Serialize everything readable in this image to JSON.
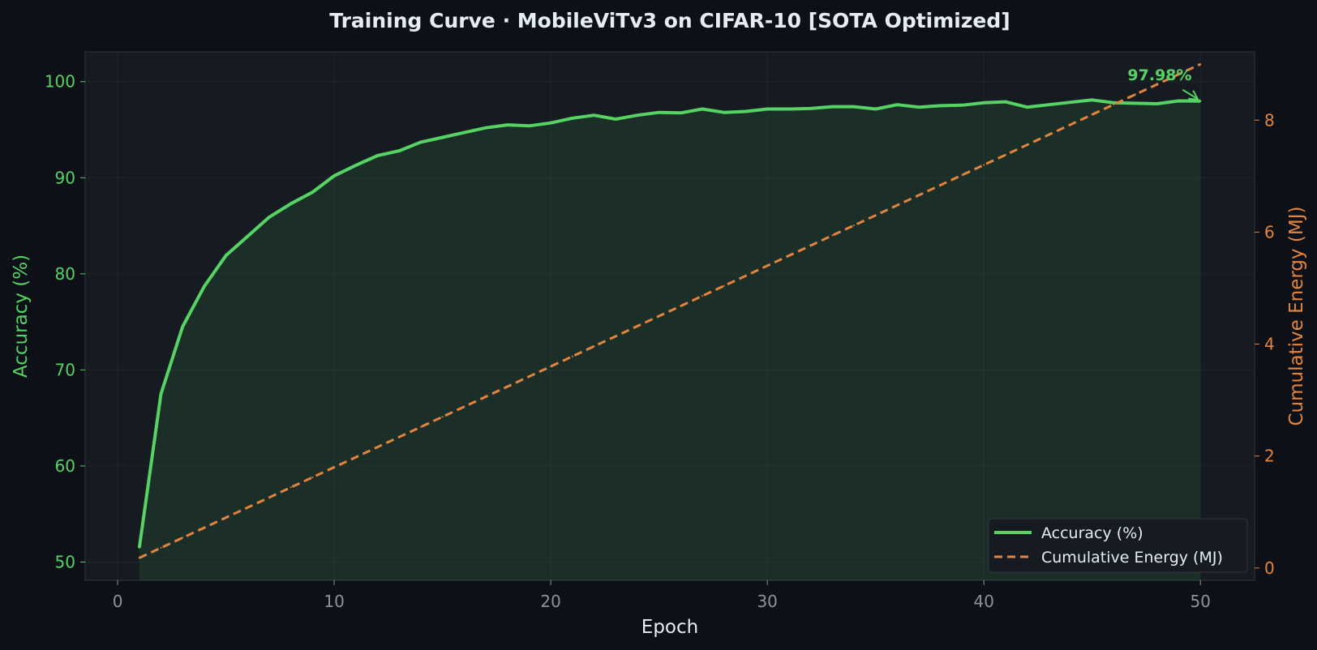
{
  "chart_data": {
    "type": "line",
    "title": "Training Curve  ·  MobileViTv3 on CIFAR-10  [SOTA Optimized]",
    "xlabel": "Epoch",
    "ylabel_left": "Accuracy (%)",
    "ylabel_right": "Cumulative Energy (MJ)",
    "xlim": [
      -1.5,
      52.5
    ],
    "ylim_left": [
      48.1,
      103.1
    ],
    "ylim_right": [
      -0.22,
      9.22
    ],
    "xticks": [
      0,
      10,
      20,
      30,
      40,
      50
    ],
    "yticks_left": [
      50,
      60,
      70,
      80,
      90,
      100
    ],
    "yticks_right": [
      0,
      2,
      4,
      6,
      8
    ],
    "grid": true,
    "legend_position": "lower-right",
    "colors": {
      "background": "#0d1117",
      "plot_background": "#161b22",
      "accuracy": "#56d364",
      "energy": "#e3843e",
      "text": "#e6edf3",
      "tick_gray": "#8b949e"
    },
    "x": [
      1,
      2,
      3,
      4,
      5,
      6,
      7,
      8,
      9,
      10,
      11,
      12,
      13,
      14,
      15,
      16,
      17,
      18,
      19,
      20,
      21,
      22,
      23,
      24,
      25,
      26,
      27,
      28,
      29,
      30,
      31,
      32,
      33,
      34,
      35,
      36,
      37,
      38,
      39,
      40,
      41,
      42,
      43,
      44,
      45,
      46,
      47,
      48,
      49,
      50
    ],
    "series": [
      {
        "name": "Accuracy (%)",
        "axis": "left",
        "style": "solid",
        "fill": true,
        "values": [
          51.5,
          67.5,
          74.5,
          78.7,
          81.9,
          83.9,
          85.9,
          87.3,
          88.5,
          90.2,
          91.3,
          92.3,
          92.8,
          93.7,
          94.2,
          94.7,
          95.2,
          95.5,
          95.4,
          95.7,
          96.2,
          96.5,
          96.1,
          96.5,
          96.8,
          96.75,
          97.15,
          96.8,
          96.9,
          97.15,
          97.15,
          97.2,
          97.4,
          97.4,
          97.15,
          97.6,
          97.35,
          97.5,
          97.55,
          97.8,
          97.9,
          97.35,
          97.6,
          97.85,
          98.1,
          97.8,
          97.75,
          97.7,
          98.0,
          97.98
        ]
      },
      {
        "name": "Cumulative Energy (MJ)",
        "axis": "right",
        "style": "dashed",
        "fill": false,
        "values": [
          0.18,
          0.36,
          0.54,
          0.72,
          0.9,
          1.08,
          1.26,
          1.44,
          1.62,
          1.8,
          1.98,
          2.16,
          2.34,
          2.52,
          2.7,
          2.88,
          3.06,
          3.24,
          3.42,
          3.6,
          3.78,
          3.96,
          4.14,
          4.32,
          4.5,
          4.68,
          4.86,
          5.04,
          5.22,
          5.4,
          5.58,
          5.76,
          5.94,
          6.12,
          6.3,
          6.48,
          6.66,
          6.84,
          7.02,
          7.2,
          7.38,
          7.56,
          7.74,
          7.92,
          8.1,
          8.28,
          8.46,
          8.64,
          8.82,
          9.0
        ]
      }
    ],
    "annotation": {
      "text": "97.98%",
      "x": 50,
      "y": 97.98
    }
  }
}
